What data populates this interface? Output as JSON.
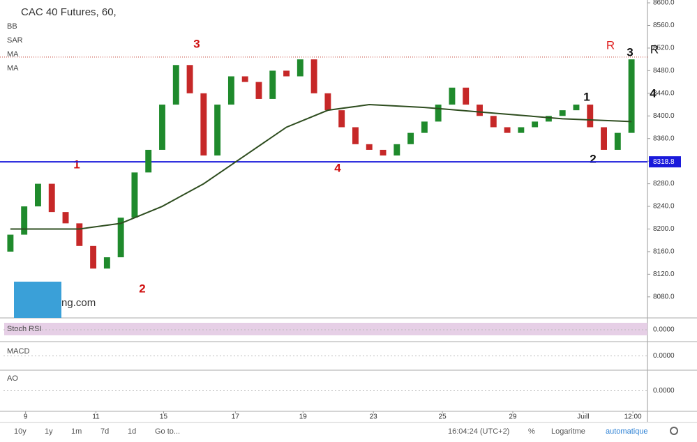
{
  "chart_data": {
    "type": "candlestick",
    "title": "CAC 40 Futures, 60,",
    "indicators": [
      "BB",
      "SAR",
      "MA",
      "MA"
    ],
    "xlim": [
      -0.5,
      45.5
    ],
    "xticks": [
      {
        "value": 1.1,
        "label": "9"
      },
      {
        "value": 6.2,
        "label": "11"
      },
      {
        "value": 11.1,
        "label": "15"
      },
      {
        "value": 16.3,
        "label": "17"
      },
      {
        "value": 21.2,
        "label": "19"
      },
      {
        "value": 26.3,
        "label": "23"
      },
      {
        "value": 31.3,
        "label": "25"
      },
      {
        "value": 36.4,
        "label": "29"
      },
      {
        "value": 41.5,
        "label": "Juill"
      },
      {
        "value": 45.1,
        "label": "12:00"
      }
    ],
    "ylim": [
      8044,
      8605
    ],
    "yticks": [
      {
        "value": 8600,
        "label": "8600.0"
      },
      {
        "value": 8560,
        "label": "8560.0"
      },
      {
        "value": 8520,
        "label": "8520.0"
      },
      {
        "value": 8480,
        "label": "8480.0"
      },
      {
        "value": 8440,
        "label": "8440.0"
      },
      {
        "value": 8400,
        "label": "8400.0"
      },
      {
        "value": 8360,
        "label": "8360.0"
      },
      {
        "value": 8320,
        "label": "8320.0"
      },
      {
        "value": 8280,
        "label": "8280.0"
      },
      {
        "value": 8240,
        "label": "8240.0"
      },
      {
        "value": 8200,
        "label": "8200.0"
      },
      {
        "value": 8160,
        "label": "8160.0"
      },
      {
        "value": 8120,
        "label": "8120.0"
      },
      {
        "value": 8080,
        "label": "8080.0"
      }
    ],
    "open": [
      8160,
      8190,
      8240,
      8280,
      8230,
      8210,
      8170,
      8130,
      8150,
      8220,
      8300,
      8340,
      8420,
      8490,
      8440,
      8330,
      8420,
      8470,
      8460,
      8430,
      8480,
      8470,
      8500,
      8440,
      8410,
      8380,
      8350,
      8340,
      8330,
      8350,
      8370,
      8390,
      8420,
      8450,
      8420,
      8400,
      8380,
      8370,
      8380,
      8390,
      8400,
      8410,
      8420,
      8380,
      8340,
      8370
    ],
    "close": [
      8190,
      8240,
      8280,
      8230,
      8210,
      8170,
      8130,
      8150,
      8220,
      8300,
      8340,
      8420,
      8490,
      8440,
      8330,
      8420,
      8470,
      8460,
      8430,
      8480,
      8470,
      8500,
      8440,
      8410,
      8380,
      8350,
      8340,
      8330,
      8350,
      8370,
      8390,
      8420,
      8450,
      8420,
      8400,
      8380,
      8370,
      8380,
      8390,
      8400,
      8410,
      8420,
      8380,
      8340,
      8370,
      8500
    ],
    "ma": {
      "x": [
        0,
        5,
        8,
        11,
        14,
        17,
        20,
        23,
        26,
        30,
        35,
        40,
        45
      ],
      "values": [
        8200,
        8200,
        8210,
        8240,
        8280,
        8330,
        8380,
        8410,
        8420,
        8415,
        8405,
        8395,
        8390
      ],
      "color": "#2e4d1f"
    },
    "support": {
      "value": 8318.8,
      "label": "8318.8",
      "color": "#1a1adb"
    },
    "resistance": {
      "value": 8504,
      "color": "#c0392b"
    },
    "annotations": [
      "1",
      "2",
      "3",
      "4",
      "R",
      "3",
      "R",
      "4",
      "1",
      "2"
    ],
    "logo": "ng.com",
    "panels": [
      {
        "name": "Stoch RSI",
        "ylim": [
          -1,
          1
        ],
        "yticks": [
          {
            "value": 0,
            "label": "0.0000"
          }
        ]
      },
      {
        "name": "MACD",
        "ylim": [
          -1,
          1
        ],
        "yticks": [
          {
            "value": 0,
            "label": "0.0000"
          }
        ]
      },
      {
        "name": "AO",
        "ylim": [
          -1,
          1
        ],
        "yticks": [
          {
            "value": 0,
            "label": "0.0000"
          }
        ]
      }
    ],
    "toolbar": {
      "ranges": [
        "10y",
        "1y",
        "1m",
        "7d",
        "1d"
      ],
      "goto": "Go to...",
      "clock": "16:04:24 (UTC+2)",
      "percent": "%",
      "log": "Logaritme",
      "auto": "automatique"
    }
  }
}
